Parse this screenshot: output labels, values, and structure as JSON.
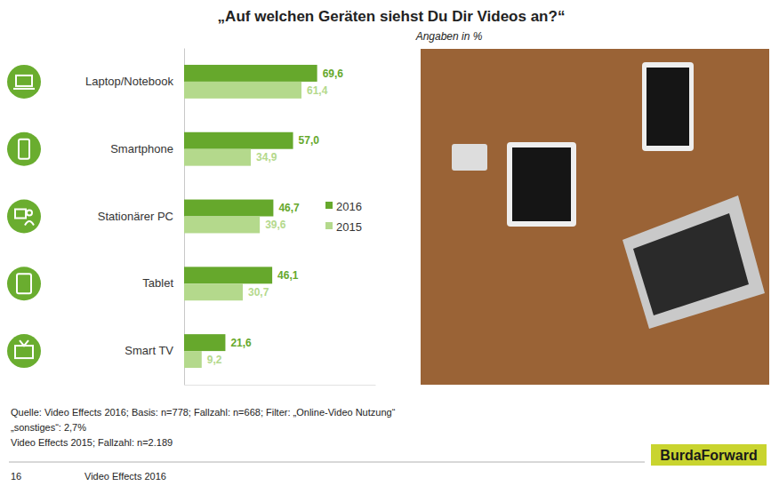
{
  "chart_data": {
    "type": "bar",
    "orientation": "horizontal",
    "title": "„Auf welchen Geräten siehst Du Dir Videos an?“",
    "subtitle": "Angaben in %",
    "categories": [
      "Laptop/Notebook",
      "Smartphone",
      "Stationärer PC",
      "Tablet",
      "Smart TV"
    ],
    "series": [
      {
        "name": "2016",
        "color": "#66a82c",
        "values": [
          69.6,
          57.0,
          46.7,
          46.1,
          21.6
        ],
        "value_labels": [
          "69,6",
          "57,0",
          "46,7",
          "46,1",
          "21,6"
        ]
      },
      {
        "name": "2015",
        "color": "#b4d98c",
        "values": [
          61.4,
          34.9,
          39.6,
          30.7,
          9.2
        ],
        "value_labels": [
          "61,4",
          "34,9",
          "39,6",
          "30,7",
          "9,2"
        ]
      }
    ],
    "xlim": [
      0,
      100
    ],
    "xticks": [],
    "tick_labels": "y",
    "data_labels": true,
    "legend": "right",
    "grid": false
  },
  "page": {
    "source": "Quelle: Video Effects 2016; Basis: n=778; Fallzahl: n=668; Filter: „Online-Video Nutzung“",
    "other": "„sonstiges“: 2,7%",
    "source_2015": "Video Effects 2015; Fallzahl: n=2.189",
    "page_number": "16",
    "report": "Video Effects 2016",
    "brand": "BurdaForward"
  }
}
